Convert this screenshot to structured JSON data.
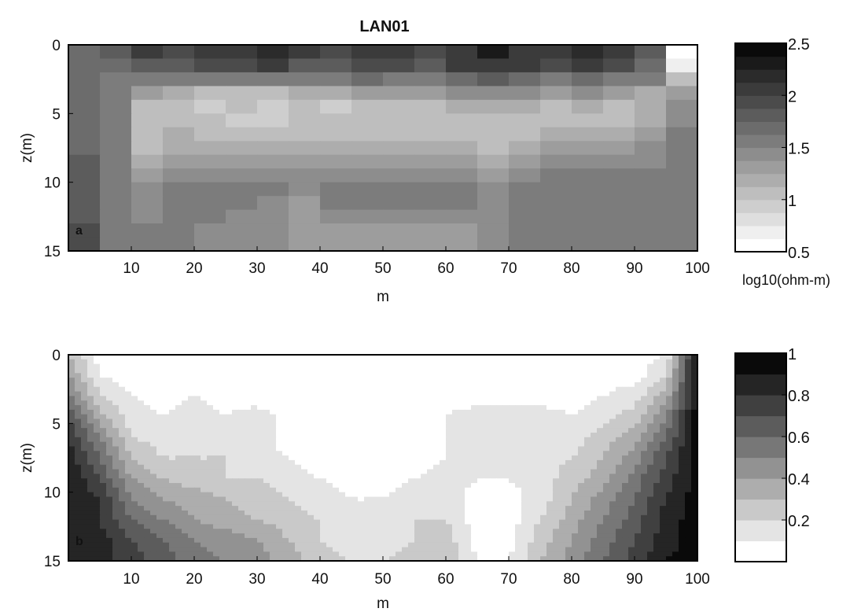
{
  "figure_title": "LAN01",
  "chart_data": [
    {
      "type": "heatmap",
      "panel_label": "a",
      "title": "LAN01",
      "xlabel": "m",
      "ylabel": "z(m)",
      "xlim": [
        0,
        100
      ],
      "ylim": [
        0,
        15
      ],
      "y_reversed": true,
      "x_ticks": [
        10,
        20,
        30,
        40,
        50,
        60,
        70,
        80,
        90,
        100
      ],
      "y_ticks": [
        0,
        5,
        10,
        15
      ],
      "colorbar": {
        "label": "log10(ohm-m)",
        "range": [
          0.5,
          2.5
        ],
        "ticks": [
          0.5,
          1,
          1.5,
          2,
          2.5
        ],
        "levels": 16,
        "colormap": "gray_reversed"
      },
      "grid": false,
      "depths": [
        0.5,
        1.5,
        2.5,
        3.5,
        4.5,
        5.5,
        6.5,
        7.5,
        8.5,
        9.5,
        10.5,
        11.5,
        12.5,
        13.5,
        14.5
      ],
      "distances": [
        2.5,
        7.5,
        12.5,
        17.5,
        22.5,
        27.5,
        32.5,
        37.5,
        42.5,
        47.5,
        52.5,
        57.5,
        62.5,
        67.5,
        72.5,
        77.5,
        82.5,
        87.5,
        92.5,
        97.5
      ],
      "values": [
        [
          1.7,
          1.8,
          2.0,
          1.9,
          2.0,
          2.1,
          2.2,
          2.0,
          1.9,
          2.1,
          2.0,
          1.9,
          2.1,
          2.3,
          2.1,
          2.0,
          2.2,
          2.0,
          1.8,
          0.6
        ],
        [
          1.7,
          1.7,
          1.8,
          1.8,
          1.9,
          1.9,
          2.0,
          1.8,
          1.8,
          1.9,
          1.9,
          1.8,
          2.0,
          2.1,
          2.0,
          1.9,
          2.0,
          1.9,
          1.7,
          0.7
        ],
        [
          1.7,
          1.6,
          1.5,
          1.6,
          1.6,
          1.5,
          1.6,
          1.5,
          1.6,
          1.7,
          1.6,
          1.6,
          1.7,
          1.8,
          1.7,
          1.6,
          1.7,
          1.6,
          1.5,
          1.0
        ],
        [
          1.7,
          1.5,
          1.3,
          1.2,
          1.1,
          1.1,
          1.1,
          1.2,
          1.2,
          1.3,
          1.3,
          1.3,
          1.4,
          1.4,
          1.4,
          1.3,
          1.4,
          1.3,
          1.2,
          1.3
        ],
        [
          1.7,
          1.5,
          1.1,
          1.1,
          0.9,
          1.0,
          0.9,
          1.1,
          0.9,
          1.1,
          1.1,
          1.1,
          1.2,
          1.2,
          1.2,
          1.1,
          1.2,
          1.0,
          1.2,
          1.4
        ],
        [
          1.7,
          1.5,
          1.0,
          1.1,
          1.0,
          0.9,
          0.9,
          1.0,
          1.0,
          1.0,
          1.1,
          1.1,
          1.1,
          1.1,
          1.1,
          1.1,
          1.1,
          1.0,
          1.2,
          1.4
        ],
        [
          1.7,
          1.5,
          1.0,
          1.2,
          1.1,
          1.1,
          1.0,
          1.1,
          1.1,
          1.1,
          1.1,
          1.1,
          1.1,
          1.1,
          1.1,
          1.2,
          1.2,
          1.2,
          1.3,
          1.5
        ],
        [
          1.7,
          1.5,
          1.1,
          1.2,
          1.2,
          1.2,
          1.2,
          1.2,
          1.2,
          1.2,
          1.2,
          1.2,
          1.2,
          1.1,
          1.2,
          1.3,
          1.3,
          1.3,
          1.4,
          1.5
        ],
        [
          1.8,
          1.5,
          1.2,
          1.3,
          1.3,
          1.3,
          1.3,
          1.3,
          1.3,
          1.3,
          1.3,
          1.3,
          1.3,
          1.2,
          1.3,
          1.4,
          1.4,
          1.4,
          1.4,
          1.6
        ],
        [
          1.8,
          1.5,
          1.3,
          1.4,
          1.4,
          1.4,
          1.4,
          1.4,
          1.4,
          1.4,
          1.4,
          1.4,
          1.4,
          1.3,
          1.4,
          1.5,
          1.5,
          1.5,
          1.5,
          1.6
        ],
        [
          1.8,
          1.5,
          1.4,
          1.5,
          1.5,
          1.5,
          1.5,
          1.4,
          1.5,
          1.5,
          1.5,
          1.5,
          1.5,
          1.4,
          1.5,
          1.5,
          1.5,
          1.6,
          1.6,
          1.6
        ],
        [
          1.8,
          1.5,
          1.4,
          1.5,
          1.5,
          1.5,
          1.4,
          1.3,
          1.5,
          1.5,
          1.5,
          1.5,
          1.5,
          1.4,
          1.5,
          1.5,
          1.6,
          1.6,
          1.6,
          1.6
        ],
        [
          1.8,
          1.5,
          1.4,
          1.5,
          1.5,
          1.4,
          1.4,
          1.3,
          1.4,
          1.4,
          1.4,
          1.4,
          1.4,
          1.4,
          1.5,
          1.5,
          1.6,
          1.6,
          1.6,
          1.6
        ],
        [
          1.9,
          1.5,
          1.5,
          1.5,
          1.4,
          1.4,
          1.4,
          1.3,
          1.3,
          1.3,
          1.3,
          1.3,
          1.3,
          1.4,
          1.5,
          1.5,
          1.6,
          1.6,
          1.6,
          1.6
        ],
        [
          1.9,
          1.5,
          1.5,
          1.5,
          1.4,
          1.4,
          1.4,
          1.3,
          1.3,
          1.3,
          1.3,
          1.3,
          1.3,
          1.4,
          1.5,
          1.5,
          1.6,
          1.6,
          1.6,
          1.6
        ]
      ]
    },
    {
      "type": "heatmap",
      "panel_label": "b",
      "xlabel": "m",
      "ylabel": "z(m)",
      "xlim": [
        0,
        100
      ],
      "ylim": [
        0,
        15
      ],
      "y_reversed": true,
      "x_ticks": [
        10,
        20,
        30,
        40,
        50,
        60,
        70,
        80,
        90,
        100
      ],
      "y_ticks": [
        0,
        5,
        10,
        15
      ],
      "colorbar": {
        "label": "",
        "range": [
          0,
          1
        ],
        "ticks": [
          0.2,
          0.4,
          0.6,
          0.8,
          1
        ],
        "levels": 10,
        "colormap": "gray_reversed"
      },
      "grid": false,
      "depths": [
        0,
        1.5,
        3,
        4.5,
        6,
        7.5,
        9,
        10.5,
        12,
        13.5,
        15
      ],
      "distances": [
        0,
        5,
        10,
        15,
        20,
        25,
        30,
        35,
        40,
        45,
        50,
        55,
        60,
        65,
        70,
        75,
        80,
        85,
        90,
        95,
        100
      ],
      "values": [
        [
          0.3,
          0.05,
          0.05,
          0.05,
          0.05,
          0.05,
          0.05,
          0.05,
          0.05,
          0.05,
          0.05,
          0.05,
          0.05,
          0.05,
          0.05,
          0.05,
          0.05,
          0.05,
          0.05,
          0.1,
          0.95
        ],
        [
          0.4,
          0.1,
          0.05,
          0.05,
          0.05,
          0.05,
          0.05,
          0.05,
          0.05,
          0.05,
          0.05,
          0.05,
          0.05,
          0.05,
          0.05,
          0.05,
          0.05,
          0.05,
          0.05,
          0.2,
          0.95
        ],
        [
          0.55,
          0.2,
          0.1,
          0.05,
          0.1,
          0.05,
          0.05,
          0.05,
          0.05,
          0.05,
          0.05,
          0.05,
          0.05,
          0.05,
          0.05,
          0.05,
          0.05,
          0.1,
          0.15,
          0.35,
          0.95
        ],
        [
          0.7,
          0.35,
          0.15,
          0.1,
          0.15,
          0.1,
          0.15,
          0.05,
          0.05,
          0.05,
          0.05,
          0.05,
          0.1,
          0.15,
          0.15,
          0.15,
          0.1,
          0.15,
          0.25,
          0.5,
          0.95
        ],
        [
          0.8,
          0.5,
          0.2,
          0.15,
          0.15,
          0.15,
          0.15,
          0.05,
          0.05,
          0.05,
          0.05,
          0.05,
          0.1,
          0.15,
          0.15,
          0.15,
          0.15,
          0.25,
          0.35,
          0.6,
          0.95
        ],
        [
          0.85,
          0.6,
          0.3,
          0.2,
          0.2,
          0.2,
          0.15,
          0.1,
          0.05,
          0.05,
          0.05,
          0.05,
          0.1,
          0.15,
          0.15,
          0.15,
          0.2,
          0.3,
          0.45,
          0.7,
          0.95
        ],
        [
          0.9,
          0.7,
          0.4,
          0.3,
          0.25,
          0.2,
          0.2,
          0.15,
          0.1,
          0.05,
          0.05,
          0.1,
          0.15,
          0.1,
          0.1,
          0.15,
          0.25,
          0.35,
          0.55,
          0.75,
          0.95
        ],
        [
          0.9,
          0.8,
          0.5,
          0.4,
          0.35,
          0.3,
          0.25,
          0.2,
          0.15,
          0.1,
          0.1,
          0.15,
          0.15,
          0.05,
          0.05,
          0.15,
          0.3,
          0.45,
          0.6,
          0.8,
          0.95
        ],
        [
          0.9,
          0.8,
          0.6,
          0.5,
          0.4,
          0.35,
          0.3,
          0.25,
          0.2,
          0.15,
          0.15,
          0.2,
          0.2,
          0.05,
          0.05,
          0.2,
          0.35,
          0.5,
          0.65,
          0.85,
          0.95
        ],
        [
          0.9,
          0.85,
          0.7,
          0.6,
          0.5,
          0.45,
          0.4,
          0.3,
          0.2,
          0.15,
          0.15,
          0.2,
          0.25,
          0.05,
          0.05,
          0.25,
          0.4,
          0.55,
          0.7,
          0.85,
          0.95
        ],
        [
          0.9,
          0.85,
          0.75,
          0.65,
          0.55,
          0.5,
          0.45,
          0.35,
          0.25,
          0.2,
          0.2,
          0.25,
          0.3,
          0.1,
          0.1,
          0.3,
          0.45,
          0.6,
          0.75,
          0.9,
          0.95
        ]
      ]
    }
  ]
}
